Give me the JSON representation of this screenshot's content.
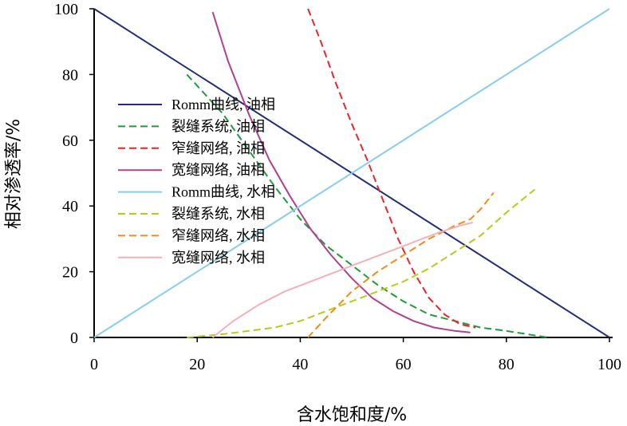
{
  "chart_data": {
    "type": "line",
    "xlabel": "含水饱和度/%",
    "ylabel": "相对渗透率/%",
    "xlim": [
      0,
      100
    ],
    "ylim": [
      0,
      100
    ],
    "x_ticks": [
      "0",
      "20",
      "40",
      "60",
      "80",
      "100"
    ],
    "y_ticks": [
      "0",
      "20",
      "40",
      "60",
      "80",
      "100"
    ],
    "grid": false,
    "legend_position": "left-center",
    "series": [
      {
        "name": "Romm曲线, 油相",
        "color": "#1f2d7a",
        "dash": "solid",
        "points": [
          [
            0,
            100
          ],
          [
            100,
            0
          ]
        ]
      },
      {
        "name": "裂缝系统, 油相",
        "color": "#1f9b3a",
        "dash": "dashed",
        "points": [
          [
            18,
            80
          ],
          [
            25,
            68
          ],
          [
            30,
            57
          ],
          [
            35,
            46
          ],
          [
            40,
            36
          ],
          [
            45,
            28
          ],
          [
            50,
            22
          ],
          [
            55,
            16
          ],
          [
            60,
            11
          ],
          [
            65,
            7
          ],
          [
            70,
            5
          ],
          [
            75,
            3
          ],
          [
            80,
            2
          ],
          [
            88,
            0
          ]
        ]
      },
      {
        "name": "窄缝网络, 油相",
        "color": "#e8262a",
        "dash": "dashed",
        "points": [
          [
            41.5,
            100
          ],
          [
            44,
            90
          ],
          [
            47,
            77
          ],
          [
            50,
            65
          ],
          [
            53,
            54
          ],
          [
            56,
            42
          ],
          [
            59,
            30
          ],
          [
            62,
            20
          ],
          [
            65,
            12
          ],
          [
            68,
            7
          ],
          [
            71,
            4
          ],
          [
            74,
            3
          ]
        ]
      },
      {
        "name": "宽缝网络, 油相",
        "color": "#b04090",
        "dash": "solid",
        "points": [
          [
            23,
            99
          ],
          [
            26,
            84
          ],
          [
            30,
            68
          ],
          [
            34,
            54
          ],
          [
            38,
            43
          ],
          [
            42,
            33
          ],
          [
            46,
            25
          ],
          [
            50,
            18
          ],
          [
            54,
            12
          ],
          [
            58,
            8
          ],
          [
            62,
            5
          ],
          [
            66,
            3
          ],
          [
            70,
            2
          ],
          [
            73,
            1.5
          ]
        ]
      },
      {
        "name": "Romm曲线, 水相",
        "color": "#87ceeb",
        "dash": "solid",
        "points": [
          [
            0,
            0
          ],
          [
            100,
            100
          ]
        ]
      },
      {
        "name": "裂缝系统, 水相",
        "color": "#b5cc18",
        "dash": "dashed",
        "points": [
          [
            18,
            0
          ],
          [
            25,
            1
          ],
          [
            30,
            2
          ],
          [
            35,
            3
          ],
          [
            40,
            5
          ],
          [
            45,
            8
          ],
          [
            50,
            11
          ],
          [
            55,
            14
          ],
          [
            60,
            17
          ],
          [
            65,
            21
          ],
          [
            70,
            26
          ],
          [
            75,
            31
          ],
          [
            80,
            38
          ],
          [
            85.5,
            45
          ]
        ]
      },
      {
        "name": "窄缝网络, 水相",
        "color": "#f28a17",
        "dash": "dashed",
        "points": [
          [
            41.5,
            0
          ],
          [
            45,
            6
          ],
          [
            50,
            14
          ],
          [
            55,
            20
          ],
          [
            60,
            25
          ],
          [
            65,
            30
          ],
          [
            70,
            34
          ],
          [
            73,
            36
          ],
          [
            75,
            39
          ],
          [
            77.5,
            44
          ]
        ]
      },
      {
        "name": "宽缝网络, 水相",
        "color": "#f4b0b8",
        "dash": "solid",
        "points": [
          [
            23,
            0
          ],
          [
            27,
            5
          ],
          [
            32,
            10
          ],
          [
            37,
            14
          ],
          [
            42,
            17
          ],
          [
            47,
            20
          ],
          [
            52,
            23
          ],
          [
            57,
            26
          ],
          [
            62,
            29
          ],
          [
            67,
            32
          ],
          [
            71,
            34
          ],
          [
            73.5,
            35
          ]
        ]
      }
    ]
  }
}
